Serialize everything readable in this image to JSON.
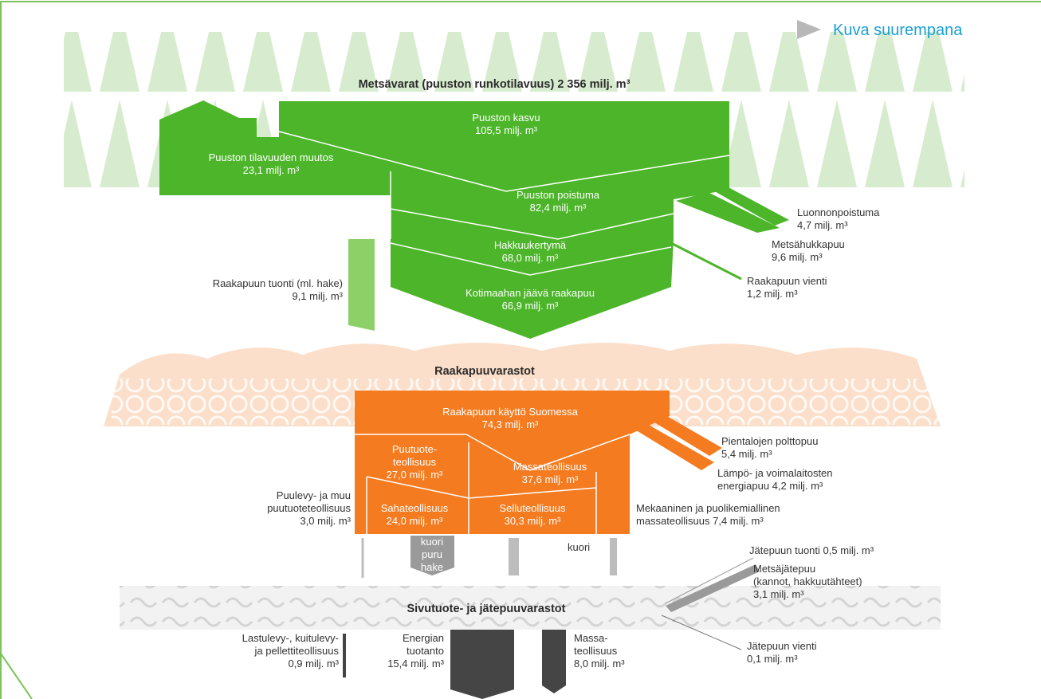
{
  "link": "Kuva suurempana",
  "titles": [
    "Metsävarat  (puuston runkotilavuus) 2 356 milj. m³",
    "Raakapuuvarastot",
    "Sivutuote- ja jätepuuvarastot"
  ],
  "labels": [
    {
      "lines": [
        "Puuston kasvu",
        "105,5 milj. m³"
      ]
    },
    {
      "lines": [
        "Puuston tilavuuden muutos",
        "23,1 milj. m³"
      ]
    },
    {
      "lines": [
        "Puuston poistuma",
        "82,4 milj. m³"
      ]
    },
    {
      "lines": [
        "Luonnonpoistuma",
        "4,7 milj. m³"
      ]
    },
    {
      "lines": [
        "Metsähukkapuu",
        "9,6 milj. m³"
      ]
    },
    {
      "lines": [
        "Hakkuukertymä",
        "68,0 milj. m³"
      ]
    },
    {
      "lines": [
        "Raakapuun tuonti (ml. hake)",
        "9,1 milj. m³"
      ]
    },
    {
      "lines": [
        "Raakapuun vienti",
        "1,2 milj. m³"
      ]
    },
    {
      "lines": [
        "Kotimaahan jäävä raakapuu",
        "66,9 milj. m³"
      ]
    },
    {
      "lines": [
        "Raakapuun käyttö Suomessa",
        "74,3 milj. m³"
      ]
    },
    {
      "lines": [
        "Pientalojen polttopuu",
        "5,4 milj. m³"
      ]
    },
    {
      "lines": [
        "Lämpö- ja voimalaitosten",
        "energiapuu 4,2 milj. m³"
      ]
    },
    {
      "lines": [
        "Puutuote-",
        "teollisuus",
        "27,0 milj. m³"
      ]
    },
    {
      "lines": [
        "Massateollisuus",
        "37,6 milj. m³"
      ]
    },
    {
      "lines": [
        "Puulevy- ja muu",
        "puutuoteteollisuus",
        "3,0 milj. m³"
      ]
    },
    {
      "lines": [
        "Sahateollisuus",
        "24,0 milj. m³"
      ]
    },
    {
      "lines": [
        "Selluteollisuus",
        "30,3 milj. m³"
      ]
    },
    {
      "lines": [
        "Mekaaninen ja puolikemiallinen",
        "massateollisuus 7,4 milj. m³"
      ]
    },
    {
      "lines": [
        "kuori",
        "puru",
        "hake"
      ]
    },
    {
      "lines": [
        "kuori"
      ]
    },
    {
      "lines": [
        "Jätepuun tuonti 0,5 milj. m³"
      ]
    },
    {
      "lines": [
        "Metsäjätepuu",
        "(kannot, hakkuutähteet)",
        "3,1 milj. m³"
      ]
    },
    {
      "lines": [
        "Jätepuun vienti",
        "0,1 milj. m³"
      ]
    },
    {
      "lines": [
        "Lastulevy-, kuitulevy-",
        "ja pellettiteollisuus",
        "0,9 milj. m³"
      ]
    },
    {
      "lines": [
        "Energian",
        "tuotanto",
        "15,4 milj. m³"
      ]
    },
    {
      "lines": [
        "Massa-",
        "teollisuus",
        "8,0 milj. m³"
      ]
    }
  ]
}
